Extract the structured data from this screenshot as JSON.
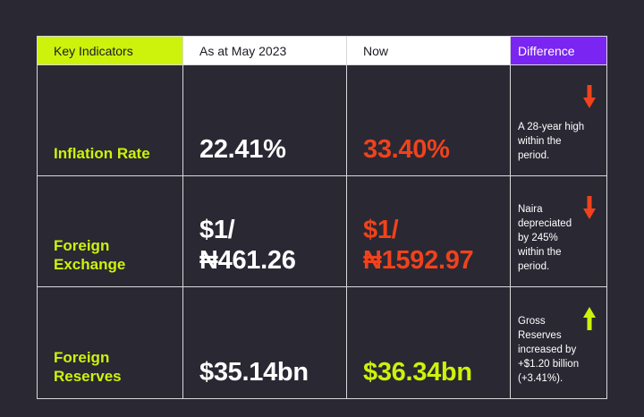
{
  "headers": [
    "Key Indicators",
    "As at May 2023",
    "Now",
    "Difference"
  ],
  "colors": {
    "lime": "#cdf20b",
    "purple": "#7a25f2",
    "red": "#f0421c",
    "background": "#2a2833"
  },
  "rows": [
    {
      "label": "Inflation Rate",
      "before": "22.41%",
      "now": "33.40%",
      "now_color": "red",
      "difference": "A 28-year high within the period.",
      "trend_icon": "arrow-down-icon"
    },
    {
      "label": "Foreign Exchange",
      "before": "$1/ ₦461.26",
      "now": "$1/ ₦1592.97",
      "now_color": "red",
      "difference": "Naira depreciated by 245% within the period.",
      "trend_icon": "arrow-down-icon"
    },
    {
      "label": "Foreign Reserves",
      "before": "$35.14bn",
      "now": "$36.34bn",
      "now_color": "lime",
      "difference": "Gross Reserves increased by +$1.20 billion (+3.41%).",
      "trend_icon": "arrow-up-icon"
    }
  ]
}
